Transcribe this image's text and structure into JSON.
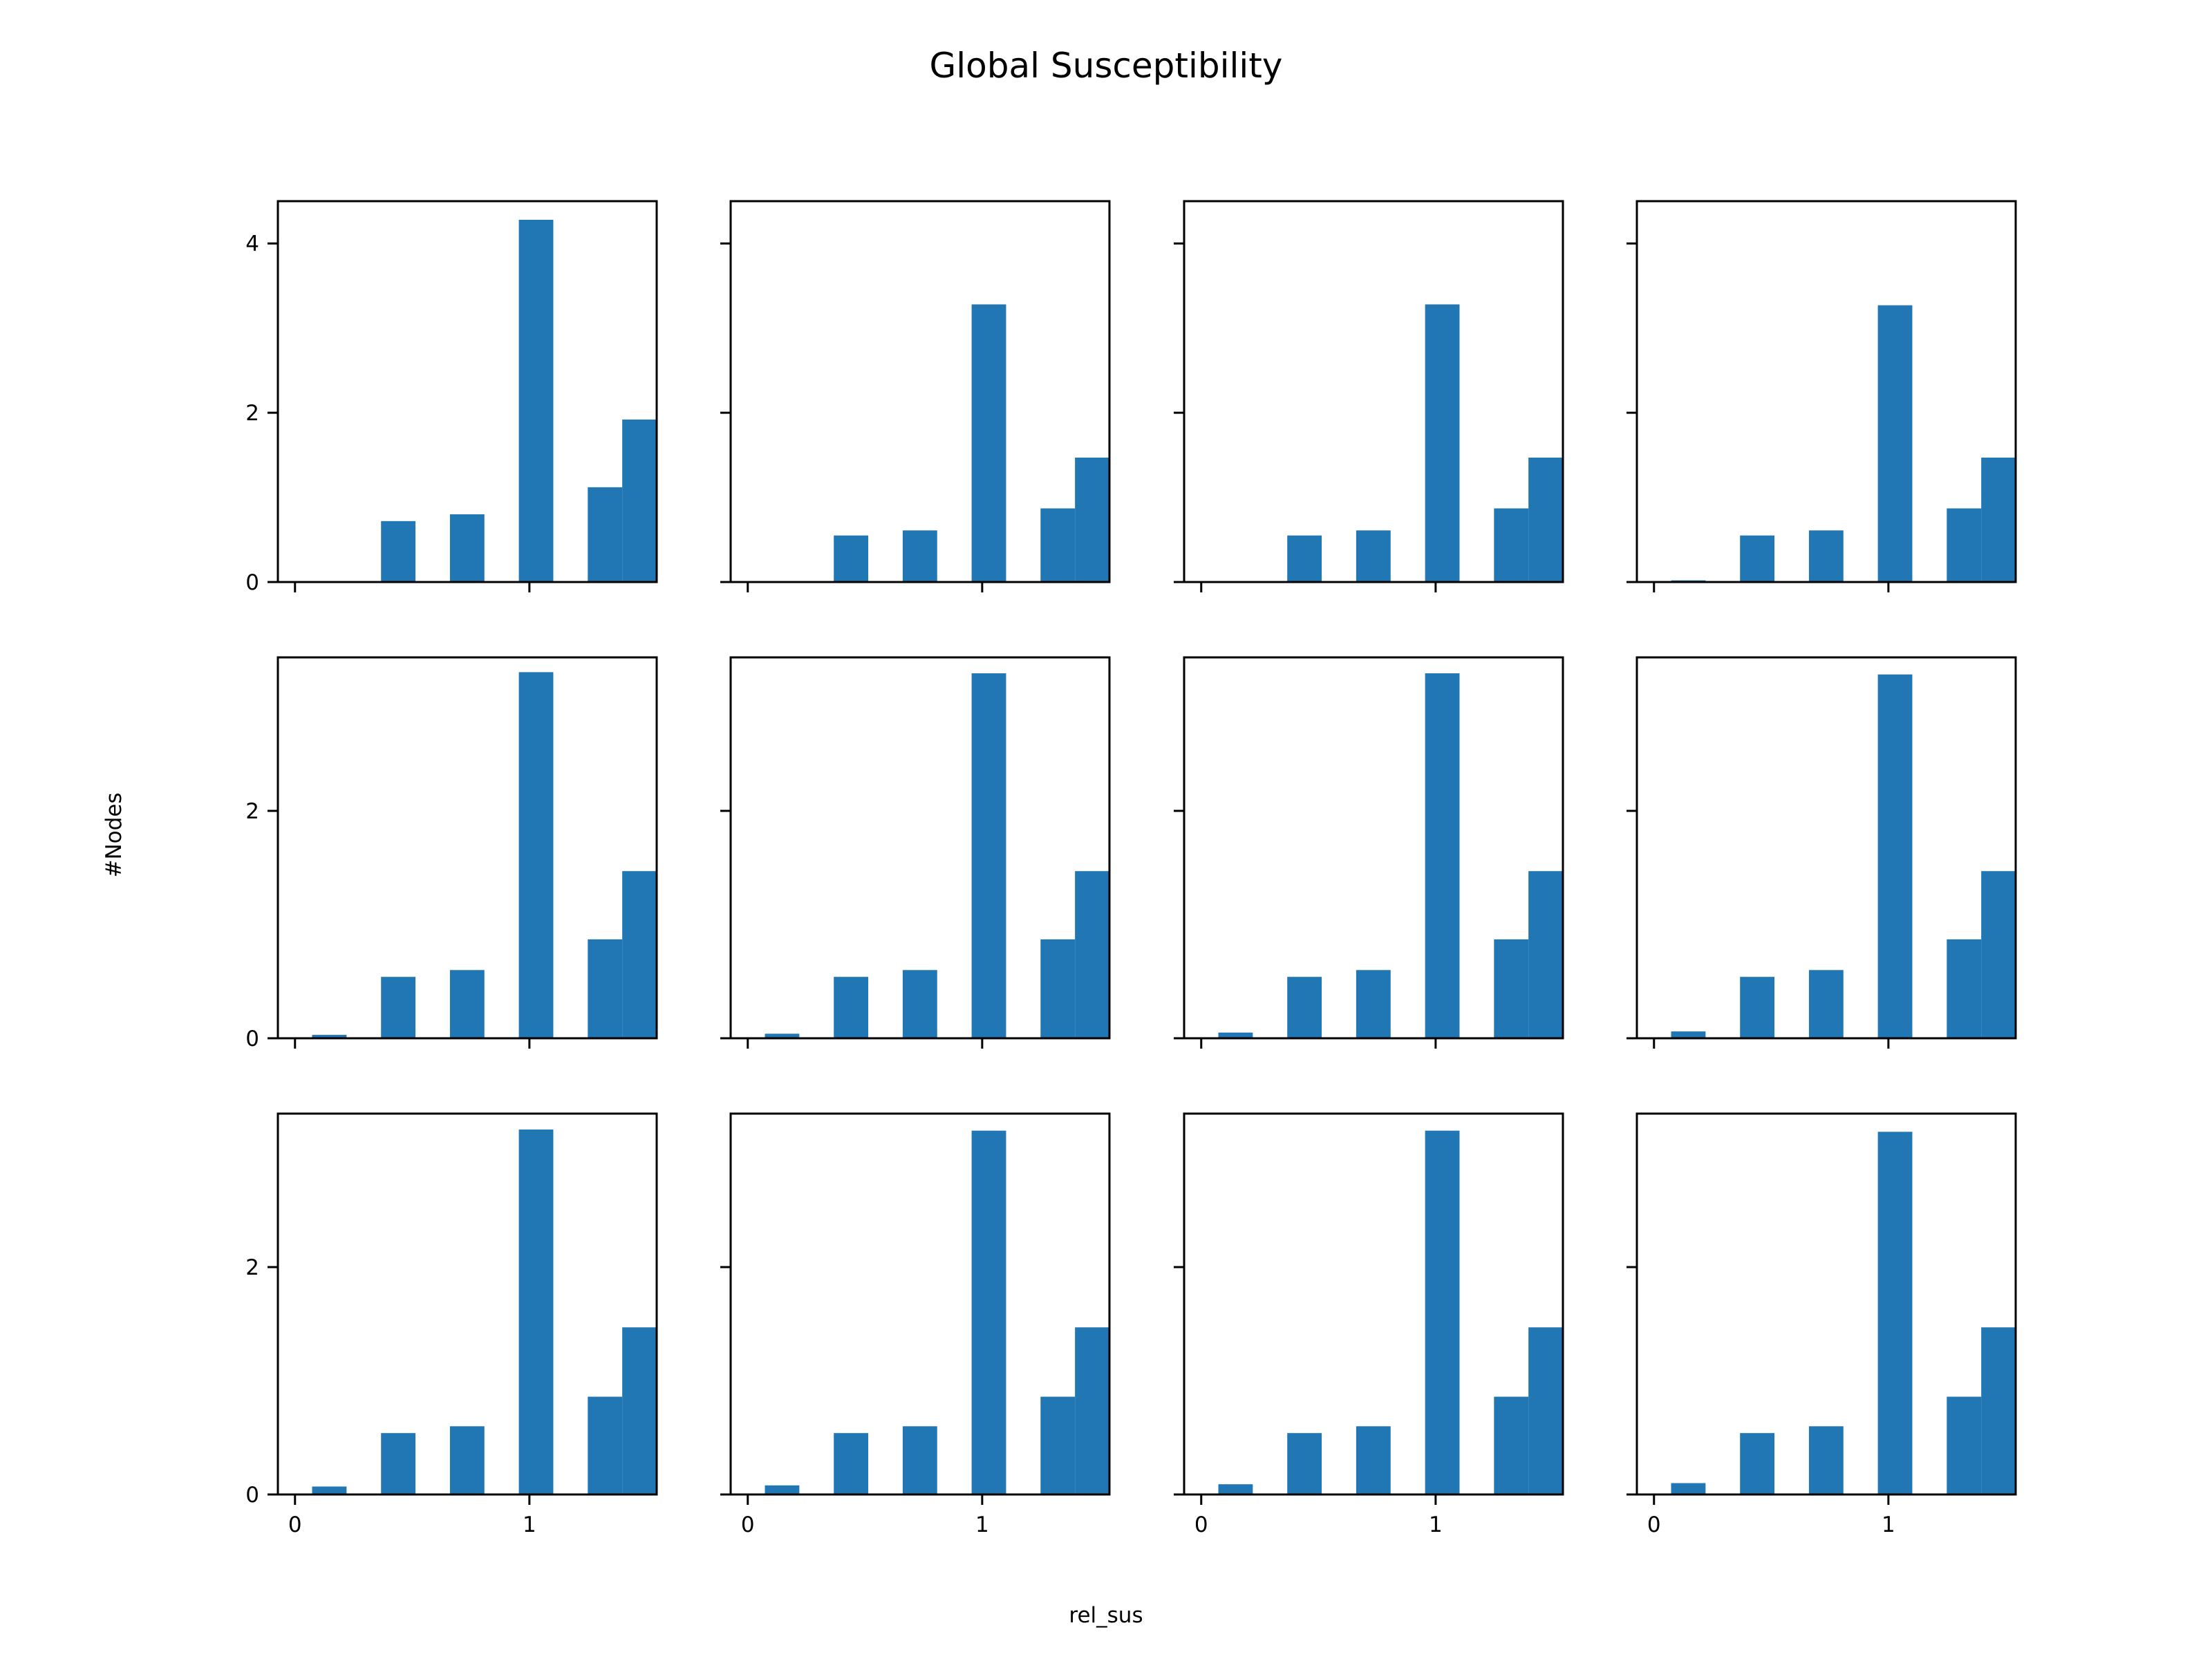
{
  "chart_data": {
    "type": "bar",
    "title": "Global Susceptibility",
    "xlabel": "rel_sus",
    "ylabel": "#Nodes",
    "grid": false,
    "layout": {
      "rows": 3,
      "cols": 4,
      "sharex": true,
      "sharey": "row"
    },
    "bar_color": "#2077b4",
    "x_ticks": [
      0,
      1
    ],
    "row_ylim": [
      [
        0,
        4.5
      ],
      [
        0,
        3.35
      ],
      [
        0,
        3.35
      ]
    ],
    "row_yticks": [
      [
        0,
        2,
        4
      ],
      [
        0,
        2
      ],
      [
        0,
        2
      ]
    ],
    "bar_width": 0.147,
    "panels": [
      {
        "bins": [
          0.0,
          0.073,
          0.22,
          0.367,
          0.514,
          0.661,
          0.808,
          0.955,
          1.102,
          1.249,
          1.396
        ],
        "counts": [
          0.0,
          0.0,
          0.0,
          0.72,
          0.0,
          0.8,
          0.0,
          4.28,
          0.0,
          1.12,
          1.92
        ]
      },
      {
        "bins": [
          0.073,
          0.367,
          0.661,
          0.955,
          1.249,
          1.396
        ],
        "counts": [
          0.0,
          0.55,
          0.61,
          3.28,
          0.87,
          1.47
        ]
      },
      {
        "bins": [
          0.073,
          0.367,
          0.661,
          0.955,
          1.249,
          1.396
        ],
        "counts": [
          0.0,
          0.55,
          0.61,
          3.28,
          0.87,
          1.47
        ]
      },
      {
        "bins": [
          0.073,
          0.367,
          0.661,
          0.955,
          1.249,
          1.396
        ],
        "counts": [
          0.02,
          0.55,
          0.61,
          3.27,
          0.87,
          1.47
        ]
      },
      {
        "bins": [
          0.073,
          0.367,
          0.661,
          0.955,
          1.249,
          1.396
        ],
        "counts": [
          0.03,
          0.54,
          0.6,
          3.22,
          0.87,
          1.47
        ]
      },
      {
        "bins": [
          0.073,
          0.367,
          0.661,
          0.955,
          1.249,
          1.396
        ],
        "counts": [
          0.04,
          0.54,
          0.6,
          3.21,
          0.87,
          1.47
        ]
      },
      {
        "bins": [
          0.073,
          0.367,
          0.661,
          0.955,
          1.249,
          1.396
        ],
        "counts": [
          0.05,
          0.54,
          0.6,
          3.21,
          0.87,
          1.47
        ]
      },
      {
        "bins": [
          0.073,
          0.367,
          0.661,
          0.955,
          1.249,
          1.396
        ],
        "counts": [
          0.06,
          0.54,
          0.6,
          3.2,
          0.87,
          1.47
        ]
      },
      {
        "bins": [
          0.073,
          0.367,
          0.661,
          0.955,
          1.249,
          1.396
        ],
        "counts": [
          0.07,
          0.54,
          0.6,
          3.21,
          0.86,
          1.47
        ]
      },
      {
        "bins": [
          0.073,
          0.367,
          0.661,
          0.955,
          1.249,
          1.396
        ],
        "counts": [
          0.08,
          0.54,
          0.6,
          3.2,
          0.86,
          1.47
        ]
      },
      {
        "bins": [
          0.073,
          0.367,
          0.661,
          0.955,
          1.249,
          1.396
        ],
        "counts": [
          0.09,
          0.54,
          0.6,
          3.2,
          0.86,
          1.47
        ]
      },
      {
        "bins": [
          0.073,
          0.367,
          0.661,
          0.955,
          1.249,
          1.396
        ],
        "counts": [
          0.1,
          0.54,
          0.6,
          3.19,
          0.86,
          1.47
        ]
      }
    ]
  }
}
